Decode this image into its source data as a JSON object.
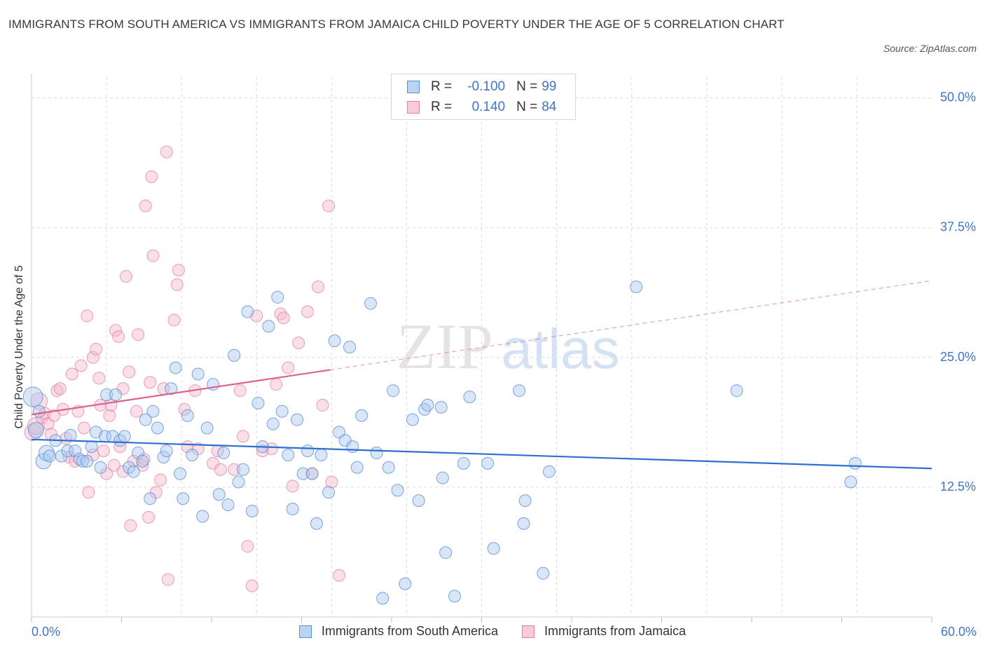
{
  "title": "IMMIGRANTS FROM SOUTH AMERICA VS IMMIGRANTS FROM JAMAICA CHILD POVERTY UNDER THE AGE OF 5 CORRELATION CHART",
  "source": "Source: ZipAtlas.com",
  "watermark": {
    "zip": "ZIP",
    "atlas": "atlas"
  },
  "legend_box": {
    "rows": [
      {
        "r_label": "R =",
        "r_value": "-0.100",
        "n_label": "N =",
        "n_value": "99"
      },
      {
        "r_label": "R =",
        "r_value": "0.140",
        "n_label": "N =",
        "n_value": "84"
      }
    ]
  },
  "colors": {
    "blue_fill": "#a9c8f0",
    "blue_stroke": "#5b8fd6",
    "blue_line": "#2f6fd0",
    "pink_fill": "#f5b8cb",
    "pink_stroke": "#e07fa0",
    "pink_line": "#e0608e",
    "tick_text": "#3f74c8",
    "grid": "#dcdcdc"
  },
  "chart_data": {
    "type": "scatter",
    "title": "IMMIGRANTS FROM SOUTH AMERICA VS IMMIGRANTS FROM JAMAICA CHILD POVERTY UNDER THE AGE OF 5 CORRELATION CHART",
    "xlabel": "",
    "ylabel": "Child Poverty Under the Age of 5",
    "xlim": [
      0,
      60
    ],
    "ylim": [
      0,
      52
    ],
    "x_tick_labels": [
      "0.0%",
      "60.0%"
    ],
    "y_ticks": [
      12.5,
      25.0,
      37.5,
      50.0
    ],
    "y_tick_labels": [
      "12.5%",
      "25.0%",
      "37.5%",
      "50.0%"
    ],
    "grid": true,
    "legend_position": "bottom",
    "series": [
      {
        "name": "Immigrants from South America",
        "r": -0.1,
        "n": 99,
        "trend": {
          "x": [
            0,
            60
          ],
          "y": [
            17.1,
            14.3
          ]
        },
        "points": [
          [
            0.1,
            21.2
          ],
          [
            0.3,
            18.0
          ],
          [
            0.5,
            19.8
          ],
          [
            0.8,
            15.0
          ],
          [
            1.0,
            15.8
          ],
          [
            1.2,
            15.5
          ],
          [
            1.6,
            17.0
          ],
          [
            2.0,
            15.5
          ],
          [
            2.4,
            16.0
          ],
          [
            2.6,
            17.5
          ],
          [
            2.9,
            16.0
          ],
          [
            3.2,
            15.2
          ],
          [
            3.4,
            15.0
          ],
          [
            3.7,
            15.0
          ],
          [
            4.0,
            16.4
          ],
          [
            4.3,
            17.8
          ],
          [
            4.6,
            14.4
          ],
          [
            4.9,
            17.4
          ],
          [
            5.0,
            21.4
          ],
          [
            5.4,
            17.4
          ],
          [
            5.6,
            21.4
          ],
          [
            5.9,
            17.0
          ],
          [
            6.2,
            17.4
          ],
          [
            6.5,
            14.4
          ],
          [
            6.8,
            14.0
          ],
          [
            7.1,
            15.8
          ],
          [
            7.4,
            15.0
          ],
          [
            7.6,
            19.0
          ],
          [
            7.9,
            11.4
          ],
          [
            8.1,
            19.8
          ],
          [
            8.4,
            18.2
          ],
          [
            8.8,
            15.4
          ],
          [
            9.0,
            16.0
          ],
          [
            9.3,
            22.0
          ],
          [
            9.6,
            24.0
          ],
          [
            9.9,
            13.8
          ],
          [
            10.1,
            11.4
          ],
          [
            10.4,
            19.4
          ],
          [
            10.7,
            15.6
          ],
          [
            11.1,
            23.4
          ],
          [
            11.4,
            9.7
          ],
          [
            11.7,
            18.2
          ],
          [
            12.1,
            22.4
          ],
          [
            12.5,
            11.8
          ],
          [
            12.8,
            15.8
          ],
          [
            13.1,
            10.8
          ],
          [
            13.5,
            25.2
          ],
          [
            13.8,
            13.0
          ],
          [
            14.1,
            14.2
          ],
          [
            14.4,
            29.4
          ],
          [
            14.7,
            10.2
          ],
          [
            15.1,
            20.6
          ],
          [
            15.4,
            16.4
          ],
          [
            15.8,
            28.0
          ],
          [
            16.1,
            18.6
          ],
          [
            16.4,
            30.8
          ],
          [
            16.7,
            19.8
          ],
          [
            17.1,
            15.6
          ],
          [
            17.4,
            10.4
          ],
          [
            17.7,
            19.0
          ],
          [
            18.1,
            13.8
          ],
          [
            18.4,
            16.0
          ],
          [
            18.7,
            13.8
          ],
          [
            19.0,
            9.0
          ],
          [
            19.3,
            15.6
          ],
          [
            19.8,
            12.0
          ],
          [
            20.2,
            26.6
          ],
          [
            20.5,
            17.8
          ],
          [
            20.9,
            17.0
          ],
          [
            21.2,
            26.0
          ],
          [
            21.4,
            16.4
          ],
          [
            21.7,
            14.4
          ],
          [
            22.0,
            19.4
          ],
          [
            22.6,
            30.2
          ],
          [
            23.0,
            15.8
          ],
          [
            23.4,
            1.8
          ],
          [
            23.8,
            14.4
          ],
          [
            24.1,
            21.8
          ],
          [
            24.4,
            12.2
          ],
          [
            24.9,
            3.2
          ],
          [
            25.4,
            19.0
          ],
          [
            25.8,
            11.2
          ],
          [
            26.2,
            20.0
          ],
          [
            26.4,
            20.4
          ],
          [
            27.3,
            20.2
          ],
          [
            27.4,
            13.4
          ],
          [
            27.6,
            6.2
          ],
          [
            28.2,
            2.0
          ],
          [
            28.8,
            14.8
          ],
          [
            29.2,
            21.2
          ],
          [
            30.4,
            14.8
          ],
          [
            30.8,
            6.6
          ],
          [
            32.5,
            21.8
          ],
          [
            32.8,
            9.0
          ],
          [
            32.9,
            11.2
          ],
          [
            34.1,
            4.2
          ],
          [
            34.5,
            14.0
          ],
          [
            40.3,
            31.8
          ],
          [
            47.0,
            21.8
          ],
          [
            54.6,
            13.0
          ],
          [
            54.9,
            14.8
          ]
        ]
      },
      {
        "name": "Immigrants from Jamaica",
        "r": 0.14,
        "n": 84,
        "trend": {
          "x": [
            0,
            19.9
          ],
          "y": [
            19.5,
            23.8
          ]
        },
        "trend_extended": {
          "x": [
            19.9,
            60
          ],
          "y": [
            23.8,
            32.4
          ]
        },
        "points": [
          [
            0.1,
            17.8
          ],
          [
            0.3,
            18.4
          ],
          [
            0.5,
            20.8
          ],
          [
            0.7,
            19.2
          ],
          [
            0.9,
            19.6
          ],
          [
            1.1,
            18.6
          ],
          [
            1.3,
            17.6
          ],
          [
            1.5,
            19.4
          ],
          [
            1.7,
            21.8
          ],
          [
            1.9,
            22.0
          ],
          [
            2.1,
            20.0
          ],
          [
            2.3,
            17.2
          ],
          [
            2.5,
            15.4
          ],
          [
            2.7,
            23.4
          ],
          [
            2.9,
            15.0
          ],
          [
            3.1,
            19.8
          ],
          [
            3.3,
            24.2
          ],
          [
            3.5,
            18.2
          ],
          [
            3.7,
            29.0
          ],
          [
            3.8,
            12.0
          ],
          [
            4.1,
            15.6
          ],
          [
            4.1,
            25.0
          ],
          [
            4.3,
            25.8
          ],
          [
            4.5,
            23.0
          ],
          [
            4.6,
            20.4
          ],
          [
            4.8,
            16.0
          ],
          [
            5.0,
            13.8
          ],
          [
            5.2,
            19.4
          ],
          [
            5.3,
            20.4
          ],
          [
            5.5,
            14.6
          ],
          [
            5.6,
            27.6
          ],
          [
            5.8,
            27.0
          ],
          [
            5.9,
            16.4
          ],
          [
            6.1,
            14.0
          ],
          [
            6.1,
            22.0
          ],
          [
            6.3,
            32.8
          ],
          [
            6.5,
            23.6
          ],
          [
            6.6,
            8.8
          ],
          [
            6.8,
            15.0
          ],
          [
            7.0,
            19.8
          ],
          [
            7.1,
            27.2
          ],
          [
            7.4,
            14.6
          ],
          [
            7.5,
            15.2
          ],
          [
            7.6,
            39.6
          ],
          [
            7.8,
            9.6
          ],
          [
            7.9,
            22.6
          ],
          [
            8.0,
            42.4
          ],
          [
            8.1,
            34.8
          ],
          [
            8.3,
            12.0
          ],
          [
            8.6,
            13.2
          ],
          [
            8.8,
            22.0
          ],
          [
            9.0,
            44.8
          ],
          [
            9.1,
            3.6
          ],
          [
            9.5,
            28.6
          ],
          [
            9.7,
            32.0
          ],
          [
            9.8,
            33.4
          ],
          [
            10.2,
            20.0
          ],
          [
            10.4,
            16.4
          ],
          [
            10.9,
            21.8
          ],
          [
            11.1,
            16.2
          ],
          [
            12.1,
            14.8
          ],
          [
            12.4,
            16.0
          ],
          [
            12.6,
            14.2
          ],
          [
            13.5,
            14.2
          ],
          [
            13.9,
            21.8
          ],
          [
            14.1,
            17.4
          ],
          [
            14.4,
            6.8
          ],
          [
            14.7,
            3.0
          ],
          [
            15.0,
            29.0
          ],
          [
            15.4,
            16.0
          ],
          [
            16.0,
            16.2
          ],
          [
            16.3,
            22.4
          ],
          [
            16.6,
            29.2
          ],
          [
            16.8,
            28.8
          ],
          [
            17.1,
            24.0
          ],
          [
            17.4,
            12.6
          ],
          [
            17.8,
            26.4
          ],
          [
            18.4,
            29.4
          ],
          [
            18.7,
            13.8
          ],
          [
            19.1,
            31.8
          ],
          [
            19.4,
            20.4
          ],
          [
            19.8,
            39.6
          ],
          [
            20.0,
            13.0
          ],
          [
            20.5,
            4.0
          ]
        ]
      }
    ]
  },
  "bottom_legend": [
    "Immigrants from South America",
    "Immigrants from Jamaica"
  ]
}
